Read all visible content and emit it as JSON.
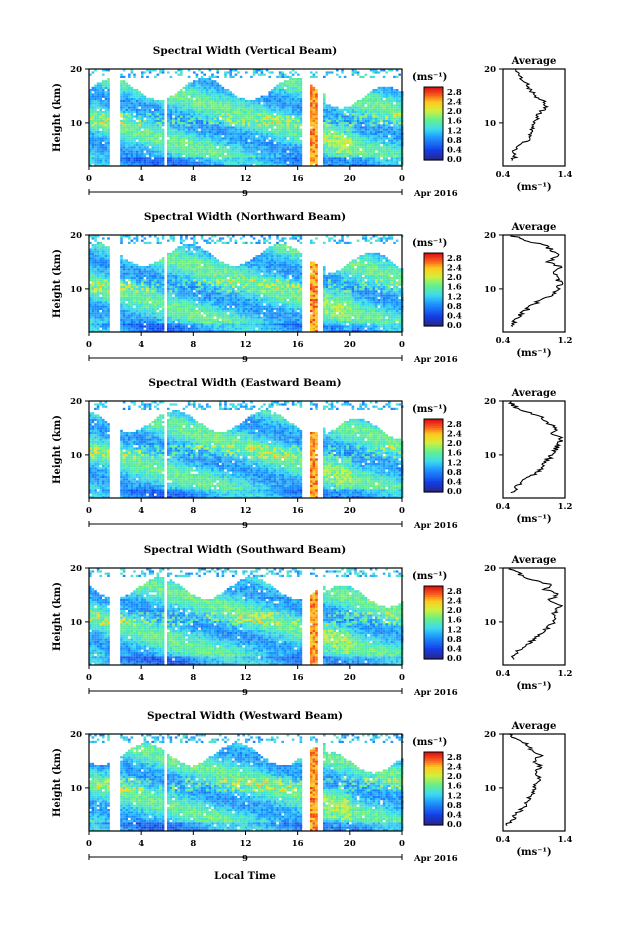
{
  "chart_data": [
    {
      "type": "heatmap",
      "title": "Spectral Width (Vertical Beam)",
      "ylabel": "Height (km)",
      "xticks": [
        "0",
        "4",
        "8",
        "12",
        "16",
        "20",
        "0"
      ],
      "yticks": [
        "20",
        "10"
      ],
      "xlim": [
        0,
        24
      ],
      "ylim": [
        2,
        20
      ],
      "date_labels": [
        "9",
        "Apr 2016"
      ],
      "colorbar": {
        "unit": "(ms⁻¹)",
        "ticks": [
          "2.8",
          "2.4",
          "2.0",
          "1.6",
          "1.2",
          "0.8",
          "0.4",
          "0.0"
        ]
      },
      "average": {
        "title": "Average",
        "xlim": [
          0.4,
          1.4
        ],
        "xticks": [
          "0.4",
          "1.4"
        ],
        "yticks": [
          "20",
          "10"
        ],
        "xlabel": "(ms⁻¹)",
        "points": [
          [
            0.55,
            3
          ],
          [
            0.6,
            4
          ],
          [
            0.58,
            5
          ],
          [
            0.7,
            6
          ],
          [
            0.82,
            7
          ],
          [
            0.85,
            8
          ],
          [
            0.86,
            9
          ],
          [
            0.88,
            10
          ],
          [
            0.95,
            11
          ],
          [
            1.0,
            12
          ],
          [
            1.1,
            13
          ],
          [
            1.05,
            14
          ],
          [
            0.92,
            15
          ],
          [
            0.85,
            16
          ],
          [
            0.8,
            17
          ],
          [
            0.7,
            18
          ],
          [
            0.65,
            19
          ],
          [
            0.6,
            20
          ]
        ]
      }
    },
    {
      "type": "heatmap",
      "title": "Spectral Width (Northward Beam)",
      "ylabel": "Height (km)",
      "xticks": [
        "0",
        "4",
        "8",
        "12",
        "16",
        "20",
        "0"
      ],
      "yticks": [
        "20",
        "10"
      ],
      "xlim": [
        0,
        24
      ],
      "ylim": [
        2,
        20
      ],
      "date_labels": [
        "9",
        "Apr 2016"
      ],
      "colorbar": {
        "unit": "(ms⁻¹)",
        "ticks": [
          "2.8",
          "2.4",
          "2.0",
          "1.6",
          "1.2",
          "0.8",
          "0.4",
          "0.0"
        ]
      },
      "average": {
        "title": "Average",
        "xlim": [
          0.4,
          1.2
        ],
        "xticks": [
          "0.4",
          "1.2"
        ],
        "yticks": [
          "20",
          "10"
        ],
        "xlabel": "(ms⁻¹)",
        "points": [
          [
            0.5,
            3
          ],
          [
            0.55,
            4
          ],
          [
            0.6,
            5
          ],
          [
            0.7,
            6
          ],
          [
            0.78,
            7
          ],
          [
            0.9,
            8
          ],
          [
            1.05,
            9
          ],
          [
            1.12,
            10
          ],
          [
            1.15,
            11
          ],
          [
            1.1,
            12
          ],
          [
            1.05,
            13
          ],
          [
            1.15,
            14
          ],
          [
            1.0,
            15
          ],
          [
            1.1,
            16
          ],
          [
            1.05,
            17
          ],
          [
            0.95,
            18
          ],
          [
            0.7,
            19
          ],
          [
            0.5,
            20
          ]
        ]
      }
    },
    {
      "type": "heatmap",
      "title": "Spectral Width (Eastward Beam)",
      "ylabel": "Height (km)",
      "xticks": [
        "0",
        "4",
        "8",
        "12",
        "16",
        "20",
        "0"
      ],
      "yticks": [
        "20",
        "10"
      ],
      "xlim": [
        0,
        24
      ],
      "ylim": [
        2,
        20
      ],
      "date_labels": [
        "9",
        "Apr 2016"
      ],
      "colorbar": {
        "unit": "(ms⁻¹)",
        "ticks": [
          "2.8",
          "2.4",
          "2.0",
          "1.6",
          "1.2",
          "0.8",
          "0.4",
          "0.0"
        ]
      },
      "average": {
        "title": "Average",
        "xlim": [
          0.4,
          1.2
        ],
        "xticks": [
          "0.4",
          "1.2"
        ],
        "yticks": [
          "20",
          "10"
        ],
        "xlabel": "(ms⁻¹)",
        "points": [
          [
            0.5,
            3
          ],
          [
            0.58,
            4
          ],
          [
            0.65,
            5
          ],
          [
            0.75,
            6
          ],
          [
            0.85,
            7
          ],
          [
            0.92,
            8
          ],
          [
            0.98,
            9
          ],
          [
            1.02,
            10
          ],
          [
            1.08,
            11
          ],
          [
            1.12,
            12
          ],
          [
            1.15,
            13
          ],
          [
            1.05,
            14
          ],
          [
            1.1,
            15
          ],
          [
            0.95,
            16
          ],
          [
            0.9,
            17
          ],
          [
            0.7,
            18
          ],
          [
            0.55,
            19
          ],
          [
            0.5,
            20
          ]
        ]
      }
    },
    {
      "type": "heatmap",
      "title": "Spectral Width (Southward Beam)",
      "ylabel": "Height (km)",
      "xticks": [
        "0",
        "4",
        "8",
        "12",
        "16",
        "20",
        "0"
      ],
      "yticks": [
        "20",
        "10"
      ],
      "xlim": [
        0,
        24
      ],
      "ylim": [
        2,
        20
      ],
      "date_labels": [
        "9",
        "Apr 2016"
      ],
      "colorbar": {
        "unit": "(ms⁻¹)",
        "ticks": [
          "2.8",
          "2.4",
          "2.0",
          "1.6",
          "1.2",
          "0.8",
          "0.4",
          "0.0"
        ]
      },
      "average": {
        "title": "Average",
        "xlim": [
          0.4,
          1.2
        ],
        "xticks": [
          "0.4",
          "1.2"
        ],
        "yticks": [
          "20",
          "10"
        ],
        "xlabel": "(ms⁻¹)",
        "points": [
          [
            0.5,
            3
          ],
          [
            0.58,
            4
          ],
          [
            0.62,
            5
          ],
          [
            0.72,
            6
          ],
          [
            0.82,
            7
          ],
          [
            0.9,
            8
          ],
          [
            0.98,
            9
          ],
          [
            1.05,
            10
          ],
          [
            1.1,
            11
          ],
          [
            1.05,
            12
          ],
          [
            1.15,
            13
          ],
          [
            1.0,
            14
          ],
          [
            1.1,
            15
          ],
          [
            0.95,
            16
          ],
          [
            1.0,
            17
          ],
          [
            0.75,
            18
          ],
          [
            0.6,
            19
          ],
          [
            0.5,
            20
          ]
        ]
      }
    },
    {
      "type": "heatmap",
      "title": "Spectral Width (Westward Beam)",
      "ylabel": "Height (km)",
      "xticks": [
        "0",
        "4",
        "8",
        "12",
        "16",
        "20",
        "0"
      ],
      "yticks": [
        "20",
        "10"
      ],
      "xlim": [
        0,
        24
      ],
      "ylim": [
        2,
        20
      ],
      "date_labels": [
        "9",
        "Apr 2016"
      ],
      "colorbar": {
        "unit": "(ms⁻¹)",
        "ticks": [
          "2.8",
          "2.4",
          "2.0",
          "1.6",
          "1.2",
          "0.8",
          "0.4",
          "0.0"
        ]
      },
      "average": {
        "title": "Average",
        "xlim": [
          0.4,
          1.4
        ],
        "xticks": [
          "0.4",
          "1.4"
        ],
        "yticks": [
          "20",
          "10"
        ],
        "xlabel": "(ms⁻¹)",
        "points": [
          [
            0.45,
            3
          ],
          [
            0.55,
            4
          ],
          [
            0.6,
            5
          ],
          [
            0.7,
            6
          ],
          [
            0.78,
            7
          ],
          [
            0.82,
            8
          ],
          [
            0.88,
            9
          ],
          [
            0.9,
            10
          ],
          [
            0.95,
            11
          ],
          [
            1.0,
            12
          ],
          [
            0.92,
            13
          ],
          [
            1.0,
            14
          ],
          [
            0.9,
            15
          ],
          [
            1.0,
            16
          ],
          [
            0.85,
            17
          ],
          [
            0.8,
            18
          ],
          [
            0.6,
            19
          ],
          [
            0.5,
            20
          ]
        ]
      }
    }
  ],
  "footer": {
    "xlabel": "Local Time"
  }
}
